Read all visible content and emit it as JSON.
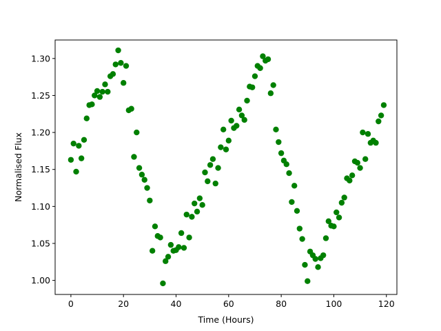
{
  "chart_data": {
    "type": "scatter",
    "xlabel": "Time (Hours)",
    "ylabel": "Normalised Flux",
    "xlim": [
      -6,
      124
    ],
    "ylim": [
      0.981,
      1.325
    ],
    "xticks": [
      0,
      20,
      40,
      60,
      80,
      100,
      120
    ],
    "xtick_labels": [
      "0",
      "20",
      "40",
      "60",
      "80",
      "100",
      "120"
    ],
    "yticks": [
      1.0,
      1.05,
      1.1,
      1.15,
      1.2,
      1.25,
      1.3
    ],
    "ytick_labels": [
      "1.00",
      "1.05",
      "1.10",
      "1.15",
      "1.20",
      "1.25",
      "1.30"
    ],
    "grid": false,
    "marker_color": "#008000",
    "series": [
      {
        "x": [
          0,
          1,
          2,
          3,
          4,
          5,
          6,
          7,
          8,
          9,
          10,
          11,
          12,
          13,
          14,
          15,
          16,
          17,
          18,
          19,
          20,
          21,
          22,
          23,
          24,
          25,
          26,
          27,
          28,
          29,
          30,
          31,
          32,
          33,
          34,
          35,
          36,
          37,
          38,
          39,
          40,
          41,
          42,
          43,
          44,
          45,
          46,
          47,
          48,
          49,
          50,
          51,
          52,
          53,
          54,
          55,
          56,
          57,
          58,
          59,
          60,
          61,
          62,
          63,
          64,
          65,
          66,
          67,
          68,
          69,
          70,
          71,
          72,
          73,
          74,
          75,
          76,
          77,
          78,
          79,
          80,
          81,
          82,
          83,
          84,
          85,
          86,
          87,
          88,
          89,
          90,
          91,
          92,
          93,
          94,
          95,
          96,
          97,
          98,
          99,
          100,
          101,
          102,
          103,
          104,
          105,
          106,
          107,
          108,
          109,
          110,
          111,
          112,
          113,
          114,
          115,
          116,
          117,
          118,
          119
        ],
        "y": [
          1.163,
          1.185,
          1.147,
          1.182,
          1.165,
          1.19,
          1.219,
          1.237,
          1.238,
          1.25,
          1.256,
          1.248,
          1.255,
          1.265,
          1.255,
          1.276,
          1.279,
          1.292,
          1.311,
          1.294,
          1.267,
          1.29,
          1.23,
          1.232,
          1.167,
          1.2,
          1.152,
          1.143,
          1.136,
          1.125,
          1.108,
          1.04,
          1.073,
          1.06,
          1.058,
          0.996,
          1.026,
          1.032,
          1.048,
          1.04,
          1.041,
          1.045,
          1.064,
          1.044,
          1.089,
          1.058,
          1.086,
          1.104,
          1.093,
          1.111,
          1.102,
          1.146,
          1.134,
          1.156,
          1.164,
          1.131,
          1.152,
          1.18,
          1.204,
          1.177,
          1.189,
          1.216,
          1.206,
          1.209,
          1.231,
          1.223,
          1.217,
          1.243,
          1.262,
          1.261,
          1.276,
          1.29,
          1.287,
          1.303,
          1.297,
          1.299,
          1.253,
          1.264,
          1.204,
          1.187,
          1.172,
          1.162,
          1.157,
          1.145,
          1.106,
          1.128,
          1.094,
          1.07,
          1.056,
          1.021,
          0.999,
          1.039,
          1.034,
          1.029,
          1.018,
          1.03,
          1.034,
          1.057,
          1.08,
          1.074,
          1.073,
          1.092,
          1.085,
          1.105,
          1.112,
          1.138,
          1.135,
          1.142,
          1.161,
          1.159,
          1.152,
          1.2,
          1.164,
          1.198,
          1.186,
          1.189,
          1.186,
          1.215,
          1.223,
          1.237
        ]
      }
    ]
  }
}
